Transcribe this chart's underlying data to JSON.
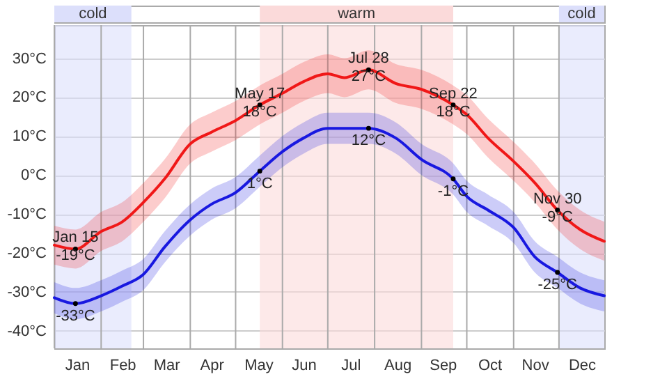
{
  "chart_data": {
    "type": "line",
    "x": [
      "--01-01",
      "--01-15",
      "--02-01",
      "--02-15",
      "--03-01",
      "--03-15",
      "--04-01",
      "--04-15",
      "--05-01",
      "--05-17",
      "--06-01",
      "--06-15",
      "--07-01",
      "--07-12",
      "--07-28",
      "--08-15",
      "--09-01",
      "--09-22",
      "--10-01",
      "--10-15",
      "--11-01",
      "--11-15",
      "--11-30",
      "--12-15",
      "--12-31"
    ],
    "series": [
      {
        "color": "#f01818",
        "values": [
          -18,
          -19,
          -14.5,
          -12,
          -7,
          -1,
          8,
          11,
          14,
          18,
          21,
          24,
          26,
          25,
          27,
          23.5,
          22,
          18,
          15.5,
          9.5,
          3.5,
          -2,
          -9,
          -14,
          -17
        ],
        "lower": [
          -23,
          -24,
          -19.5,
          -17,
          -12,
          -6,
          3,
          6,
          9,
          13,
          16,
          19,
          21,
          20,
          22,
          18.5,
          17,
          13,
          10.5,
          4.5,
          -1.5,
          -7,
          -14,
          -19,
          -22
        ],
        "upper": [
          -13,
          -14,
          -9.5,
          -7,
          -2,
          4,
          13,
          16,
          19,
          23,
          26,
          29,
          31,
          30,
          32,
          28.5,
          27,
          23,
          20.5,
          14.5,
          8.5,
          3,
          -4,
          -9,
          -12
        ]
      },
      {
        "color": "#1818e0",
        "values": [
          -31.5,
          -33,
          -31,
          -28.5,
          -25.5,
          -18.5,
          -11.5,
          -7.5,
          -4.5,
          1,
          6,
          9.5,
          12,
          12,
          12,
          9.5,
          4,
          -1,
          -5.5,
          -9,
          -13.5,
          -21,
          -25,
          -29,
          -31
        ],
        "lower": [
          -35.5,
          -37,
          -35,
          -32.5,
          -29.5,
          -22.5,
          -15.5,
          -11.5,
          -8.5,
          -3,
          2,
          5.5,
          8,
          8,
          8,
          5.5,
          0,
          -5,
          -9.5,
          -13,
          -17.5,
          -25,
          -29,
          -33,
          -35
        ],
        "upper": [
          -27.5,
          -29,
          -27,
          -24.5,
          -21.5,
          -14.5,
          -7.5,
          -3.5,
          -0.5,
          5,
          10,
          13.5,
          16,
          16,
          16,
          13.5,
          8,
          3,
          -1.5,
          -5,
          -9.5,
          -17,
          -21,
          -25,
          -27
        ]
      }
    ],
    "xlim": [
      "--01-01",
      "--12-31"
    ],
    "xticks": [
      {
        "value": "--01-01",
        "label": null
      },
      {
        "value": "--01-16",
        "label": "Jan"
      },
      {
        "value": "--02-01",
        "label": null
      },
      {
        "value": "--02-15",
        "label": "Feb"
      },
      {
        "value": "--03-01",
        "label": null
      },
      {
        "value": "--03-16",
        "label": "Mar"
      },
      {
        "value": "--04-01",
        "label": null
      },
      {
        "value": "--04-15",
        "label": "Apr"
      },
      {
        "value": "--05-01",
        "label": null
      },
      {
        "value": "--05-16",
        "label": "May"
      },
      {
        "value": "--06-01",
        "label": null
      },
      {
        "value": "--06-15",
        "label": "Jun"
      },
      {
        "value": "--07-01",
        "label": null
      },
      {
        "value": "--07-16",
        "label": "Jul"
      },
      {
        "value": "--08-01",
        "label": null
      },
      {
        "value": "--08-16",
        "label": "Aug"
      },
      {
        "value": "--09-01",
        "label": null
      },
      {
        "value": "--09-15",
        "label": "Sep"
      },
      {
        "value": "--10-01",
        "label": null
      },
      {
        "value": "--10-16",
        "label": "Oct"
      },
      {
        "value": "--11-01",
        "label": null
      },
      {
        "value": "--11-15",
        "label": "Nov"
      },
      {
        "value": "--12-01",
        "label": null
      },
      {
        "value": "--12-16",
        "label": "Dec"
      }
    ],
    "ylim": [
      -44.5,
      38.5
    ],
    "yticks": [
      {
        "value": -40,
        "label": "-40°C"
      },
      {
        "value": -30,
        "label": "-30°C"
      },
      {
        "value": -20,
        "label": "-20°C"
      },
      {
        "value": -10,
        "label": "-10°C"
      },
      {
        "value": 0,
        "label": "0°C"
      },
      {
        "value": 10,
        "label": "10°C"
      },
      {
        "value": 20,
        "label": "20°C"
      },
      {
        "value": 30,
        "label": "30°C"
      }
    ],
    "grid": true,
    "line_style": "solid",
    "bands": [
      {
        "axis": "x",
        "from": "--01-01",
        "to": "--02-21",
        "label": "cold",
        "color": "#dcdffb"
      },
      {
        "axis": "x",
        "from": "--05-17",
        "to": "--09-22",
        "label": "warm",
        "color": "#fbdada"
      },
      {
        "axis": "x",
        "from": "--12-01",
        "to": "--12-31",
        "label": "cold",
        "color": "#dcdffb"
      }
    ],
    "annotations": [
      {
        "text": "Jan 15\n-19°C",
        "x": "--01-15",
        "y": -19
      },
      {
        "text": "May 17\n18°C",
        "x": "--05-17",
        "y": 18
      },
      {
        "text": "Jul 28\n27°C",
        "x": "--07-28",
        "y": 27
      },
      {
        "text": "Sep 22\n18°C",
        "x": "--09-22",
        "y": 18
      },
      {
        "text": "Nov 30\n-9°C",
        "x": "--11-30",
        "y": -9
      },
      {
        "text": "-33°C",
        "x": "--01-15",
        "y": -33
      },
      {
        "text": "1°C",
        "x": "--05-17",
        "y": 1
      },
      {
        "text": "12°C",
        "x": "--07-28",
        "y": 12
      },
      {
        "text": "-1°C",
        "x": "--09-22",
        "y": -1
      },
      {
        "text": "-25°C",
        "x": "--11-30",
        "y": -25
      }
    ]
  }
}
